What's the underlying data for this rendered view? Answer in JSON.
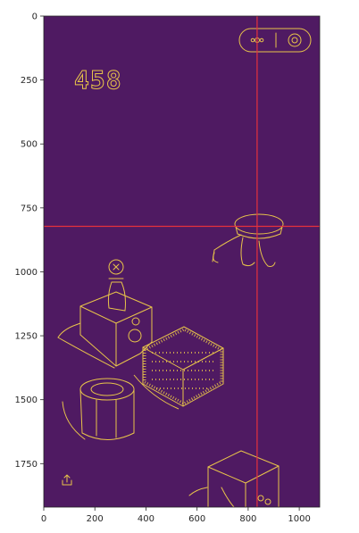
{
  "chart_data": {
    "type": "image",
    "title": "",
    "xlabel": "",
    "ylabel": "",
    "xlim": [
      0,
      1080
    ],
    "ylim": [
      1920,
      0
    ],
    "xticks": [
      0,
      200,
      400,
      600,
      800,
      1000
    ],
    "yticks": [
      0,
      250,
      500,
      750,
      1000,
      1250,
      1500,
      1750
    ],
    "crosshair": {
      "x": 835,
      "y": 822
    },
    "colors": {
      "background": "#4f1a62",
      "edges": "#e8c44a",
      "crosshair": "#e5323c"
    },
    "score_text": "458"
  }
}
